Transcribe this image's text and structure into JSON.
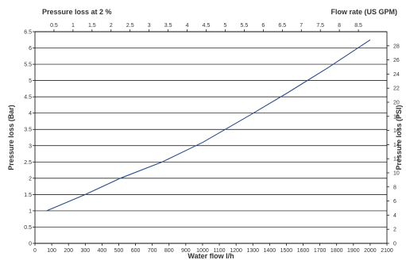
{
  "chart_data": {
    "type": "line",
    "xlabel": "Water flow l/h",
    "ylabel": "Pressure loss (Bar)",
    "y2label": "Pressure loss (PSI)",
    "top_left_label": "Pressure loss at 2 %",
    "x2label": "Flow rate (US GPM)",
    "xlim": [
      0,
      2100
    ],
    "ylim": [
      0,
      6.5
    ],
    "y2lim": [
      0,
      30
    ],
    "x2lim": [
      0,
      9.25
    ],
    "x_ticks": [
      "0",
      "100",
      "200",
      "300",
      "400",
      "500",
      "600",
      "700",
      "800",
      "900",
      "1000",
      "1100",
      "1200",
      "1300",
      "1400",
      "1500",
      "1600",
      "1700",
      "1800",
      "1900",
      "2000",
      "2100"
    ],
    "y_ticks": [
      "0",
      "0.5",
      "1",
      "1.5",
      "2",
      "2.5",
      "3",
      "3.5",
      "4",
      "4.5",
      "5",
      "5.5",
      "6",
      "6.5"
    ],
    "y2_ticks": [
      "0",
      "2",
      "4",
      "6",
      "8",
      "10",
      "12",
      "14",
      "16",
      "18",
      "20",
      "22",
      "24",
      "26",
      "28"
    ],
    "x2_ticks": [
      "0.5",
      "1",
      "1.5",
      "2",
      "2.5",
      "3",
      "3.5",
      "4",
      "4.5",
      "5",
      "5.5",
      "6",
      "6.5",
      "7",
      "7.5",
      "8",
      "8.5"
    ],
    "grid": "horizontal",
    "line_color": "#2b4a8c",
    "series": [
      {
        "x": [
          70,
          300,
          510,
          760,
          1000,
          1270,
          1500,
          1750,
          2000
        ],
        "y": [
          1.0,
          1.5,
          2.0,
          2.5,
          3.1,
          3.9,
          4.6,
          5.4,
          6.25
        ]
      }
    ]
  }
}
